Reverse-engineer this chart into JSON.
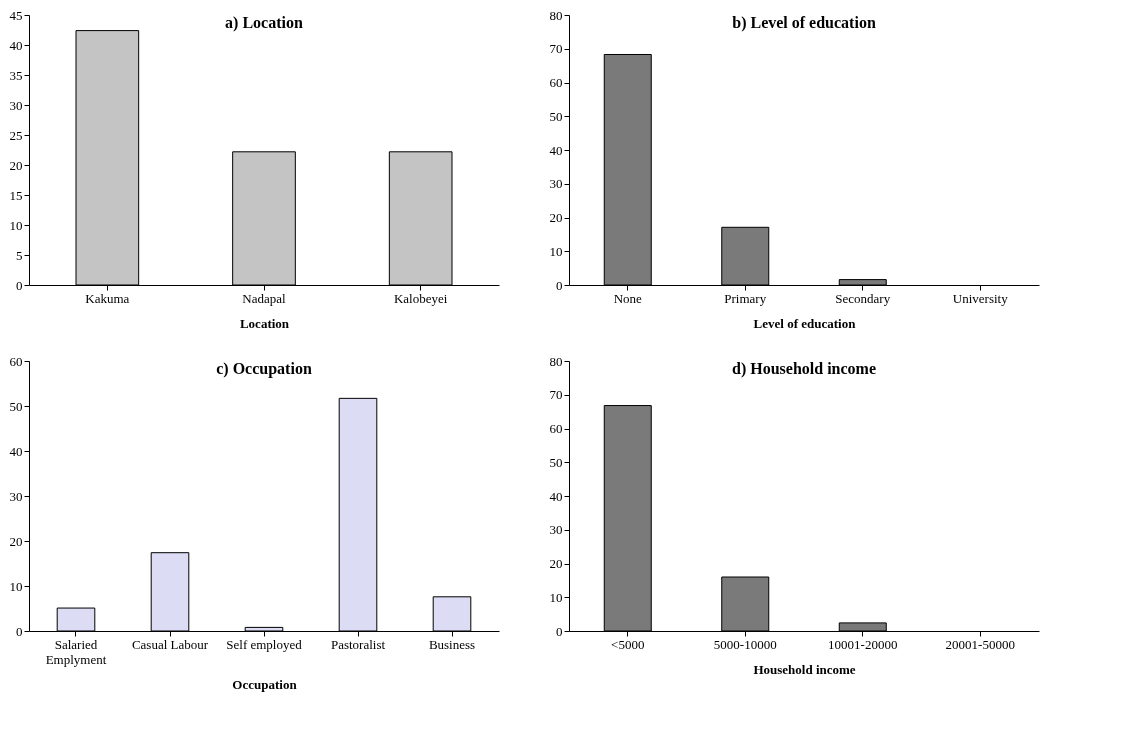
{
  "chart_data": [
    {
      "type": "bar",
      "title": "a) Location",
      "xlabel": "Location",
      "categories": [
        "Kakuma",
        "Nadapal",
        "Kalobeyei"
      ],
      "values": [
        42.4,
        22.2,
        22.2
      ],
      "color": "#c4c4c4",
      "ylim": [
        0,
        45
      ],
      "yticks": [
        0,
        5,
        10,
        15,
        20,
        25,
        30,
        35,
        40,
        45
      ],
      "grid": false
    },
    {
      "type": "bar",
      "title": "b) Level of education",
      "xlabel": "Level of education",
      "categories": [
        "None",
        "Primary",
        "Secondary",
        "University"
      ],
      "values": [
        68.3,
        17.1,
        1.6,
        0
      ],
      "color": "#7a7a7a",
      "ylim": [
        0,
        80
      ],
      "yticks": [
        0,
        10,
        20,
        30,
        40,
        50,
        60,
        70,
        80
      ],
      "grid": false
    },
    {
      "type": "bar",
      "title": "c) Occupation",
      "xlabel": "Occupation",
      "categories": [
        "Salaried Emplyment",
        "Casual Labour",
        "Self employed",
        "Pastoralist",
        "Business"
      ],
      "values": [
        5.1,
        17.4,
        0.8,
        51.7,
        7.6
      ],
      "color": "#dcdcf4",
      "ylim": [
        0,
        60
      ],
      "yticks": [
        0,
        10,
        20,
        30,
        40,
        50,
        60
      ],
      "grid": false
    },
    {
      "type": "bar",
      "title": "d) Household income",
      "xlabel": "Household income",
      "categories": [
        "<5000",
        "5000-10000",
        "10001-20000",
        "20001-50000"
      ],
      "values": [
        66.8,
        16.0,
        2.4,
        0
      ],
      "color": "#7a7a7a",
      "ylim": [
        0,
        80
      ],
      "yticks": [
        0,
        10,
        20,
        30,
        40,
        50,
        60,
        70,
        80
      ],
      "grid": false
    }
  ]
}
